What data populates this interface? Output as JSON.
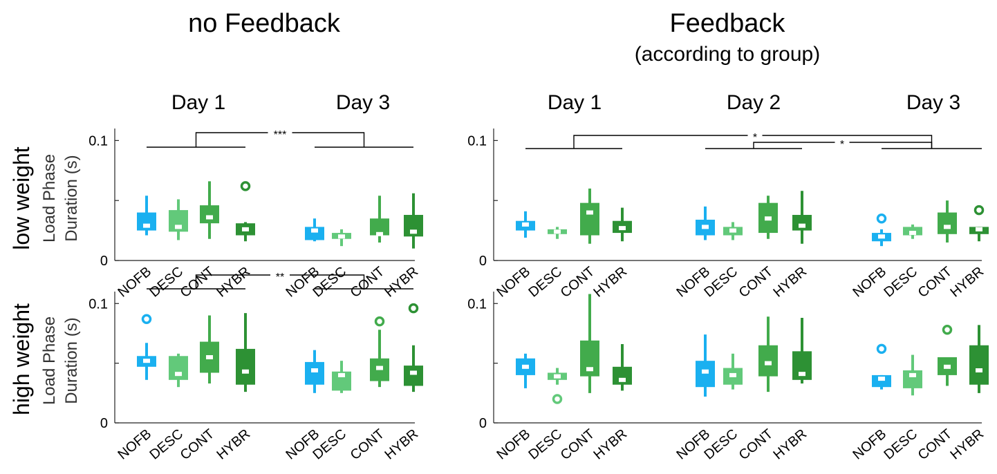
{
  "titles": {
    "left": "no Feedback",
    "right": "Feedback",
    "right_sub": "(according to group)"
  },
  "rows": {
    "low": "low weight",
    "high": "high weight"
  },
  "ylabel_line1": "Load Phase",
  "ylabel_line2": "Duration (s)",
  "colors": {
    "NOFB": "#1ab0f0",
    "DESC": "#62c97a",
    "CONT": "#42ab4c",
    "HYBR": "#2d9134"
  },
  "chart_data": [
    {
      "type": "box",
      "panel": "no Feedback / low weight",
      "ylim": [
        0,
        0.11
      ],
      "yticks": [
        0,
        0.1
      ],
      "ytick_labels": [
        "0",
        "0.1"
      ],
      "days": [
        "Day 1",
        "Day 3"
      ],
      "categories": [
        "NOFB",
        "DESC",
        "CONT",
        "HYBR"
      ],
      "boxes": [
        {
          "day": "Day 1",
          "group": "NOFB",
          "whisker_low": 0.021,
          "q1": 0.025,
          "median": 0.029,
          "q3": 0.04,
          "whisker_high": 0.054,
          "outliers": []
        },
        {
          "day": "Day 1",
          "group": "DESC",
          "whisker_low": 0.017,
          "q1": 0.024,
          "median": 0.028,
          "q3": 0.042,
          "whisker_high": 0.051,
          "outliers": []
        },
        {
          "day": "Day 1",
          "group": "CONT",
          "whisker_low": 0.018,
          "q1": 0.031,
          "median": 0.036,
          "q3": 0.046,
          "whisker_high": 0.066,
          "outliers": []
        },
        {
          "day": "Day 1",
          "group": "HYBR",
          "whisker_low": 0.016,
          "q1": 0.021,
          "median": 0.026,
          "q3": 0.031,
          "whisker_high": 0.032,
          "outliers": [
            0.062
          ]
        },
        {
          "day": "Day 3",
          "group": "NOFB",
          "whisker_low": 0.016,
          "q1": 0.017,
          "median": 0.025,
          "q3": 0.028,
          "whisker_high": 0.035,
          "outliers": []
        },
        {
          "day": "Day 3",
          "group": "DESC",
          "whisker_low": 0.012,
          "q1": 0.018,
          "median": 0.02,
          "q3": 0.023,
          "whisker_high": 0.026,
          "outliers": []
        },
        {
          "day": "Day 3",
          "group": "CONT",
          "whisker_low": 0.015,
          "q1": 0.021,
          "median": 0.022,
          "q3": 0.035,
          "whisker_high": 0.054,
          "outliers": []
        },
        {
          "day": "Day 3",
          "group": "HYBR",
          "whisker_low": 0.01,
          "q1": 0.02,
          "median": 0.024,
          "q3": 0.038,
          "whisker_high": 0.056,
          "outliers": []
        }
      ],
      "significance": [
        {
          "from_day": "Day 1",
          "to_day": "Day 3",
          "label": "***"
        }
      ]
    },
    {
      "type": "box",
      "panel": "Feedback / low weight",
      "ylim": [
        0,
        0.11
      ],
      "yticks": [
        0,
        0.1
      ],
      "ytick_labels": [
        "0",
        "0.1"
      ],
      "days": [
        "Day 1",
        "Day 2",
        "Day 3"
      ],
      "categories": [
        "NOFB",
        "DESC",
        "CONT",
        "HYBR"
      ],
      "boxes": [
        {
          "day": "Day 1",
          "group": "NOFB",
          "whisker_low": 0.019,
          "q1": 0.025,
          "median": 0.03,
          "q3": 0.033,
          "whisker_high": 0.041,
          "outliers": []
        },
        {
          "day": "Day 1",
          "group": "DESC",
          "whisker_low": 0.018,
          "q1": 0.022,
          "median": 0.024,
          "q3": 0.026,
          "whisker_high": 0.028,
          "outliers": []
        },
        {
          "day": "Day 1",
          "group": "CONT",
          "whisker_low": 0.014,
          "q1": 0.021,
          "median": 0.04,
          "q3": 0.048,
          "whisker_high": 0.06,
          "outliers": []
        },
        {
          "day": "Day 1",
          "group": "HYBR",
          "whisker_low": 0.016,
          "q1": 0.023,
          "median": 0.027,
          "q3": 0.033,
          "whisker_high": 0.044,
          "outliers": []
        },
        {
          "day": "Day 2",
          "group": "NOFB",
          "whisker_low": 0.017,
          "q1": 0.021,
          "median": 0.028,
          "q3": 0.034,
          "whisker_high": 0.045,
          "outliers": []
        },
        {
          "day": "Day 2",
          "group": "DESC",
          "whisker_low": 0.017,
          "q1": 0.021,
          "median": 0.025,
          "q3": 0.028,
          "whisker_high": 0.032,
          "outliers": []
        },
        {
          "day": "Day 2",
          "group": "CONT",
          "whisker_low": 0.018,
          "q1": 0.023,
          "median": 0.035,
          "q3": 0.048,
          "whisker_high": 0.054,
          "outliers": []
        },
        {
          "day": "Day 2",
          "group": "HYBR",
          "whisker_low": 0.014,
          "q1": 0.025,
          "median": 0.029,
          "q3": 0.038,
          "whisker_high": 0.058,
          "outliers": []
        },
        {
          "day": "Day 3",
          "group": "NOFB",
          "whisker_low": 0.012,
          "q1": 0.016,
          "median": 0.02,
          "q3": 0.023,
          "whisker_high": 0.026,
          "outliers": [
            0.035
          ]
        },
        {
          "day": "Day 3",
          "group": "DESC",
          "whisker_low": 0.018,
          "q1": 0.021,
          "median": 0.023,
          "q3": 0.028,
          "whisker_high": 0.03,
          "outliers": []
        },
        {
          "day": "Day 3",
          "group": "CONT",
          "whisker_low": 0.015,
          "q1": 0.022,
          "median": 0.028,
          "q3": 0.04,
          "whisker_high": 0.05,
          "outliers": []
        },
        {
          "day": "Day 3",
          "group": "HYBR",
          "whisker_low": 0.016,
          "q1": 0.022,
          "median": 0.026,
          "q3": 0.028,
          "whisker_high": 0.028,
          "outliers": [
            0.042
          ]
        }
      ],
      "significance": [
        {
          "from_day": "Day 1",
          "to_day": "Day 3",
          "label": "*"
        },
        {
          "from_day": "Day 2",
          "to_day": "Day 3",
          "label": "*"
        }
      ]
    },
    {
      "type": "box",
      "panel": "no Feedback / high weight",
      "ylim": [
        0,
        0.11
      ],
      "yticks": [
        0,
        0.1
      ],
      "ytick_labels": [
        "0",
        "0.1"
      ],
      "days": [
        "Day 1",
        "Day 3"
      ],
      "categories": [
        "NOFB",
        "DESC",
        "CONT",
        "HYBR"
      ],
      "boxes": [
        {
          "day": "Day 1",
          "group": "NOFB",
          "whisker_low": 0.036,
          "q1": 0.047,
          "median": 0.052,
          "q3": 0.056,
          "whisker_high": 0.067,
          "outliers": [
            0.087
          ]
        },
        {
          "day": "Day 1",
          "group": "DESC",
          "whisker_low": 0.03,
          "q1": 0.036,
          "median": 0.041,
          "q3": 0.056,
          "whisker_high": 0.058,
          "outliers": []
        },
        {
          "day": "Day 1",
          "group": "CONT",
          "whisker_low": 0.033,
          "q1": 0.042,
          "median": 0.055,
          "q3": 0.068,
          "whisker_high": 0.09,
          "outliers": []
        },
        {
          "day": "Day 1",
          "group": "HYBR",
          "whisker_low": 0.026,
          "q1": 0.032,
          "median": 0.043,
          "q3": 0.062,
          "whisker_high": 0.092,
          "outliers": []
        },
        {
          "day": "Day 3",
          "group": "NOFB",
          "whisker_low": 0.025,
          "q1": 0.032,
          "median": 0.044,
          "q3": 0.051,
          "whisker_high": 0.061,
          "outliers": []
        },
        {
          "day": "Day 3",
          "group": "DESC",
          "whisker_low": 0.025,
          "q1": 0.027,
          "median": 0.04,
          "q3": 0.043,
          "whisker_high": 0.052,
          "outliers": []
        },
        {
          "day": "Day 3",
          "group": "CONT",
          "whisker_low": 0.03,
          "q1": 0.035,
          "median": 0.046,
          "q3": 0.054,
          "whisker_high": 0.078,
          "outliers": [
            0.085
          ]
        },
        {
          "day": "Day 3",
          "group": "HYBR",
          "whisker_low": 0.026,
          "q1": 0.031,
          "median": 0.042,
          "q3": 0.048,
          "whisker_high": 0.065,
          "outliers": [
            0.096
          ]
        }
      ],
      "significance": [
        {
          "from_day": "Day 1",
          "to_day": "Day 3",
          "label": "**"
        }
      ]
    },
    {
      "type": "box",
      "panel": "Feedback / high weight",
      "ylim": [
        0,
        0.11
      ],
      "yticks": [
        0,
        0.1
      ],
      "ytick_labels": [
        "0",
        "0.1"
      ],
      "days": [
        "Day 1",
        "Day 2",
        "Day 3"
      ],
      "categories": [
        "NOFB",
        "DESC",
        "CONT",
        "HYBR"
      ],
      "boxes": [
        {
          "day": "Day 1",
          "group": "NOFB",
          "whisker_low": 0.029,
          "q1": 0.04,
          "median": 0.047,
          "q3": 0.054,
          "whisker_high": 0.058,
          "outliers": []
        },
        {
          "day": "Day 1",
          "group": "DESC",
          "whisker_low": 0.032,
          "q1": 0.036,
          "median": 0.039,
          "q3": 0.042,
          "whisker_high": 0.046,
          "outliers": [
            0.02
          ]
        },
        {
          "day": "Day 1",
          "group": "CONT",
          "whisker_low": 0.025,
          "q1": 0.039,
          "median": 0.045,
          "q3": 0.069,
          "whisker_high": 0.108,
          "outliers": []
        },
        {
          "day": "Day 1",
          "group": "HYBR",
          "whisker_low": 0.027,
          "q1": 0.032,
          "median": 0.036,
          "q3": 0.047,
          "whisker_high": 0.066,
          "outliers": []
        },
        {
          "day": "Day 2",
          "group": "NOFB",
          "whisker_low": 0.022,
          "q1": 0.03,
          "median": 0.043,
          "q3": 0.052,
          "whisker_high": 0.074,
          "outliers": []
        },
        {
          "day": "Day 2",
          "group": "DESC",
          "whisker_low": 0.028,
          "q1": 0.032,
          "median": 0.04,
          "q3": 0.046,
          "whisker_high": 0.058,
          "outliers": []
        },
        {
          "day": "Day 2",
          "group": "CONT",
          "whisker_low": 0.026,
          "q1": 0.039,
          "median": 0.05,
          "q3": 0.065,
          "whisker_high": 0.089,
          "outliers": []
        },
        {
          "day": "Day 2",
          "group": "HYBR",
          "whisker_low": 0.033,
          "q1": 0.036,
          "median": 0.041,
          "q3": 0.06,
          "whisker_high": 0.088,
          "outliers": []
        },
        {
          "day": "Day 3",
          "group": "NOFB",
          "whisker_low": 0.028,
          "q1": 0.03,
          "median": 0.037,
          "q3": 0.04,
          "whisker_high": 0.04,
          "outliers": [
            0.062
          ]
        },
        {
          "day": "Day 3",
          "group": "DESC",
          "whisker_low": 0.023,
          "q1": 0.029,
          "median": 0.04,
          "q3": 0.044,
          "whisker_high": 0.057,
          "outliers": []
        },
        {
          "day": "Day 3",
          "group": "CONT",
          "whisker_low": 0.031,
          "q1": 0.04,
          "median": 0.047,
          "q3": 0.055,
          "whisker_high": 0.055,
          "outliers": [
            0.078
          ]
        },
        {
          "day": "Day 3",
          "group": "HYBR",
          "whisker_low": 0.025,
          "q1": 0.032,
          "median": 0.044,
          "q3": 0.065,
          "whisker_high": 0.082,
          "outliers": []
        }
      ],
      "significance": []
    }
  ]
}
